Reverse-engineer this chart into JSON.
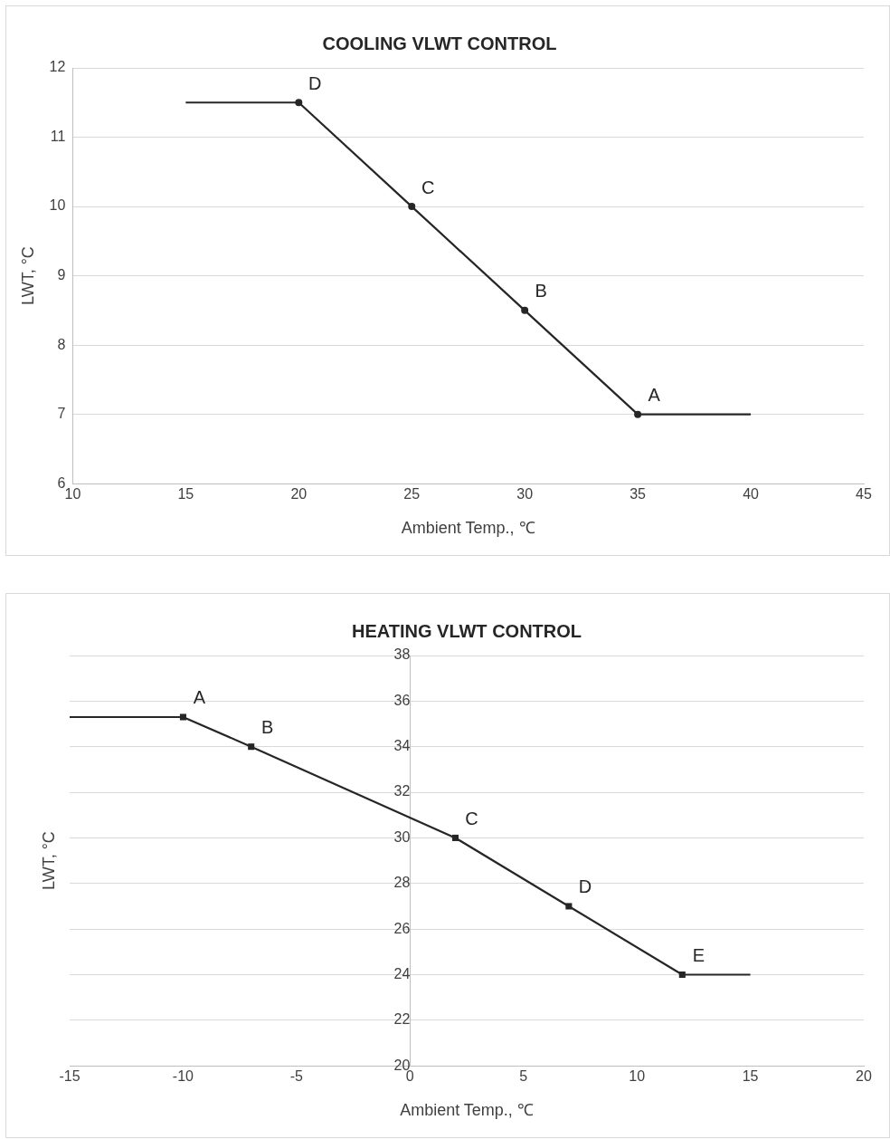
{
  "chart_data": [
    {
      "type": "line",
      "title": "COOLING VLWT CONTROL",
      "xlabel": "Ambient Temp., ℃",
      "ylabel": "LWT, °C",
      "xlim": [
        10,
        45
      ],
      "xticks": [
        10,
        15,
        20,
        25,
        30,
        35,
        40,
        45
      ],
      "ylim": [
        6,
        12
      ],
      "yticks": [
        6,
        7,
        8,
        9,
        10,
        11,
        12
      ],
      "grid": "y",
      "legend": false,
      "series": [
        {
          "color": "#262626",
          "marker": "none",
          "x": [
            15,
            20,
            25,
            30,
            35,
            40
          ],
          "values": [
            11.5,
            11.5,
            10,
            8.5,
            7,
            7
          ]
        },
        {
          "type": "scatter",
          "color": "#262626",
          "marker": "circle",
          "x": [
            20,
            25,
            30,
            35
          ],
          "values": [
            11.5,
            10,
            8.5,
            7
          ]
        }
      ],
      "annotations": [
        {
          "text": "D",
          "x": 20,
          "y": 11.5
        },
        {
          "text": "C",
          "x": 25,
          "y": 10
        },
        {
          "text": "B",
          "x": 30,
          "y": 8.5
        },
        {
          "text": "A",
          "x": 35,
          "y": 7
        }
      ]
    },
    {
      "type": "line",
      "title": "HEATING VLWT CONTROL",
      "xlabel": "Ambient Temp., ℃",
      "ylabel": "LWT, °C",
      "xlim": [
        -15,
        20
      ],
      "xticks": [
        -15,
        -10,
        -5,
        0,
        5,
        10,
        15,
        20
      ],
      "ylim": [
        20,
        38
      ],
      "yticks": [
        20,
        22,
        24,
        26,
        28,
        30,
        32,
        34,
        36,
        38
      ],
      "grid": "y",
      "legend": false,
      "series": [
        {
          "color": "#262626",
          "marker": "none",
          "x": [
            -15,
            -10,
            -7,
            2,
            7,
            12,
            15
          ],
          "values": [
            35.3,
            35.3,
            34,
            30,
            27,
            24,
            24
          ]
        },
        {
          "type": "scatter",
          "color": "#262626",
          "marker": "square",
          "x": [
            -10,
            -7,
            2,
            7,
            12
          ],
          "values": [
            35.3,
            34,
            30,
            27,
            24
          ]
        }
      ],
      "annotations": [
        {
          "text": "A",
          "x": -10,
          "y": 35.3
        },
        {
          "text": "B",
          "x": -7,
          "y": 34
        },
        {
          "text": "C",
          "x": 2,
          "y": 30
        },
        {
          "text": "D",
          "x": 7,
          "y": 27
        },
        {
          "text": "E",
          "x": 12,
          "y": 24
        }
      ]
    }
  ]
}
